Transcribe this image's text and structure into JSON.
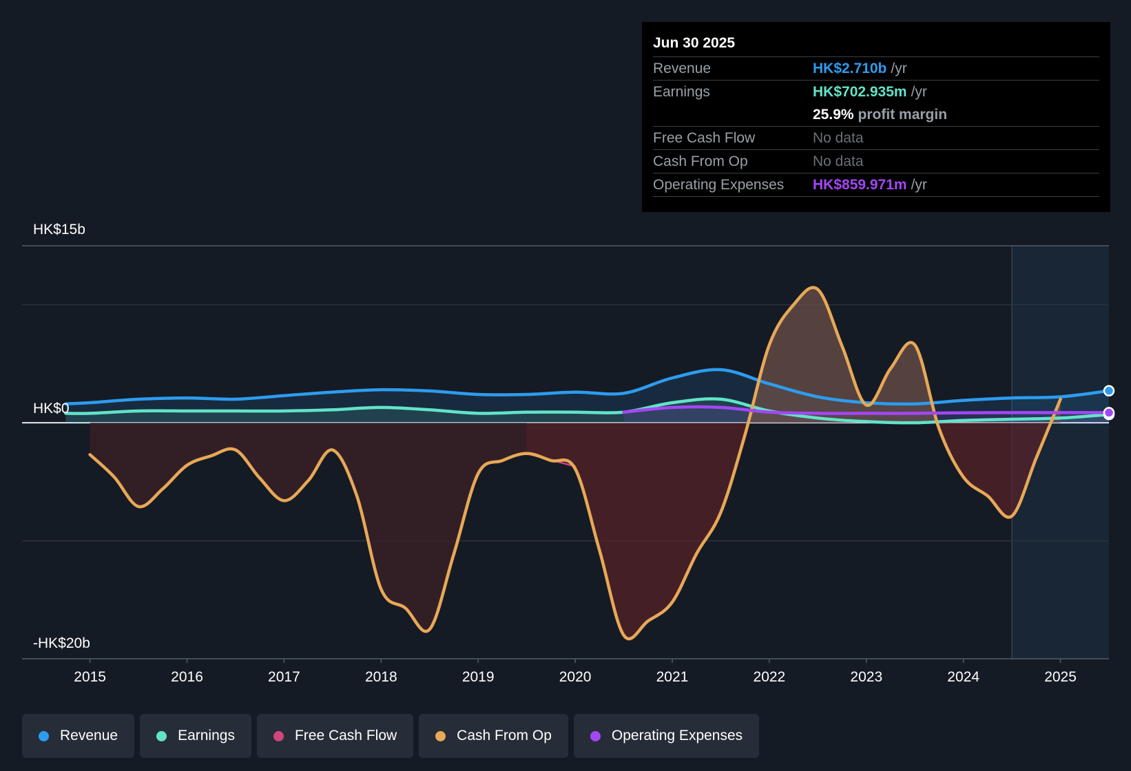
{
  "colors": {
    "revenue": "#2d9cf0",
    "earnings": "#62e3c8",
    "fcf": "#d0457d",
    "cfo": "#e8a857",
    "opex": "#a347f5",
    "negfill": "#5a2128",
    "posfill": "#6b5048"
  },
  "tooltip": {
    "date": "Jun 30 2025",
    "revenue_label": "Revenue",
    "revenue_value": "HK$2.710b",
    "revenue_unit": "/yr",
    "earnings_label": "Earnings",
    "earnings_value": "HK$702.935m",
    "earnings_unit": "/yr",
    "margin_value": "25.9%",
    "margin_label": "profit margin",
    "fcf_label": "Free Cash Flow",
    "fcf_value": "No data",
    "cfo_label": "Cash From Op",
    "cfo_value": "No data",
    "opex_label": "Operating Expenses",
    "opex_value": "HK$859.971m",
    "opex_unit": "/yr"
  },
  "legend": [
    {
      "label": "Revenue",
      "color": "#2d9cf0"
    },
    {
      "label": "Earnings",
      "color": "#62e3c8"
    },
    {
      "label": "Free Cash Flow",
      "color": "#d0457d"
    },
    {
      "label": "Cash From Op",
      "color": "#e8a857"
    },
    {
      "label": "Operating Expenses",
      "color": "#a347f5"
    }
  ],
  "chart_data": {
    "type": "line",
    "title": "",
    "y_unit": "HK$ billions",
    "ylim": [
      -20,
      15
    ],
    "y_labels": [
      {
        "value": 15,
        "text": "HK$15b"
      },
      {
        "value": 0,
        "text": "HK$0"
      },
      {
        "value": -20,
        "text": "-HK$20b"
      }
    ],
    "xlim": [
      2014.3,
      2025.5
    ],
    "x_ticks": [
      2015,
      2016,
      2017,
      2018,
      2019,
      2020,
      2021,
      2022,
      2023,
      2024,
      2025
    ],
    "forecast_start": 2024.5,
    "series": [
      {
        "name": "Revenue",
        "key": "revenue",
        "points": [
          [
            2014.75,
            1.6
          ],
          [
            2015,
            1.7
          ],
          [
            2015.5,
            2.0
          ],
          [
            2016,
            2.1
          ],
          [
            2016.5,
            2.0
          ],
          [
            2017,
            2.3
          ],
          [
            2017.5,
            2.6
          ],
          [
            2018,
            2.8
          ],
          [
            2018.5,
            2.7
          ],
          [
            2019,
            2.4
          ],
          [
            2019.5,
            2.4
          ],
          [
            2020,
            2.6
          ],
          [
            2020.5,
            2.5
          ],
          [
            2021,
            3.8
          ],
          [
            2021.5,
            4.5
          ],
          [
            2022,
            3.3
          ],
          [
            2022.5,
            2.2
          ],
          [
            2023,
            1.7
          ],
          [
            2023.5,
            1.6
          ],
          [
            2024,
            1.9
          ],
          [
            2024.5,
            2.1
          ],
          [
            2025,
            2.2
          ],
          [
            2025.5,
            2.71
          ]
        ]
      },
      {
        "name": "Earnings",
        "key": "earnings",
        "points": [
          [
            2014.75,
            0.8
          ],
          [
            2015,
            0.8
          ],
          [
            2015.5,
            1.0
          ],
          [
            2016,
            1.0
          ],
          [
            2016.5,
            1.0
          ],
          [
            2017,
            1.0
          ],
          [
            2017.5,
            1.1
          ],
          [
            2018,
            1.3
          ],
          [
            2018.5,
            1.1
          ],
          [
            2019,
            0.8
          ],
          [
            2019.5,
            0.9
          ],
          [
            2020,
            0.9
          ],
          [
            2020.5,
            0.9
          ],
          [
            2021,
            1.7
          ],
          [
            2021.5,
            2.0
          ],
          [
            2022,
            1.0
          ],
          [
            2022.5,
            0.4
          ],
          [
            2023,
            0.1
          ],
          [
            2023.5,
            0.0
          ],
          [
            2024,
            0.2
          ],
          [
            2024.5,
            0.3
          ],
          [
            2025,
            0.4
          ],
          [
            2025.5,
            0.7
          ]
        ]
      },
      {
        "name": "Free Cash Flow",
        "key": "fcf",
        "points": [
          [
            2019.5,
            -2.6
          ],
          [
            2020,
            -3.7
          ]
        ]
      },
      {
        "name": "Cash From Op",
        "key": "cfo",
        "points": [
          [
            2015,
            -2.7
          ],
          [
            2015.25,
            -4.6
          ],
          [
            2015.5,
            -7.1
          ],
          [
            2015.75,
            -5.6
          ],
          [
            2016,
            -3.6
          ],
          [
            2016.25,
            -2.8
          ],
          [
            2016.5,
            -2.3
          ],
          [
            2016.75,
            -4.7
          ],
          [
            2017,
            -6.6
          ],
          [
            2017.25,
            -4.9
          ],
          [
            2017.5,
            -2.3
          ],
          [
            2017.75,
            -6.2
          ],
          [
            2018,
            -14.1
          ],
          [
            2018.25,
            -15.7
          ],
          [
            2018.5,
            -17.5
          ],
          [
            2018.75,
            -11.1
          ],
          [
            2019,
            -4.3
          ],
          [
            2019.25,
            -3.2
          ],
          [
            2019.5,
            -2.6
          ],
          [
            2019.75,
            -3.2
          ],
          [
            2020,
            -3.9
          ],
          [
            2020.25,
            -10.8
          ],
          [
            2020.5,
            -18.0
          ],
          [
            2020.75,
            -16.8
          ],
          [
            2021,
            -15.2
          ],
          [
            2021.25,
            -11.1
          ],
          [
            2021.5,
            -7.6
          ],
          [
            2021.75,
            -1.0
          ],
          [
            2022,
            6.6
          ],
          [
            2022.25,
            10.0
          ],
          [
            2022.5,
            11.3
          ],
          [
            2022.75,
            6.5
          ],
          [
            2023,
            1.5
          ],
          [
            2023.25,
            4.6
          ],
          [
            2023.5,
            6.6
          ],
          [
            2023.75,
            -0.5
          ],
          [
            2024,
            -4.6
          ],
          [
            2024.25,
            -6.2
          ],
          [
            2024.5,
            -7.9
          ],
          [
            2024.75,
            -3.0
          ],
          [
            2025,
            2.0
          ]
        ]
      },
      {
        "name": "Operating Expenses",
        "key": "opex",
        "points": [
          [
            2020.5,
            0.9
          ],
          [
            2021,
            1.3
          ],
          [
            2021.5,
            1.3
          ],
          [
            2022,
            0.9
          ],
          [
            2022.5,
            0.8
          ],
          [
            2023,
            0.8
          ],
          [
            2023.5,
            0.8
          ],
          [
            2024,
            0.85
          ],
          [
            2024.5,
            0.86
          ],
          [
            2025,
            0.86
          ],
          [
            2025.5,
            0.86
          ]
        ]
      }
    ]
  }
}
